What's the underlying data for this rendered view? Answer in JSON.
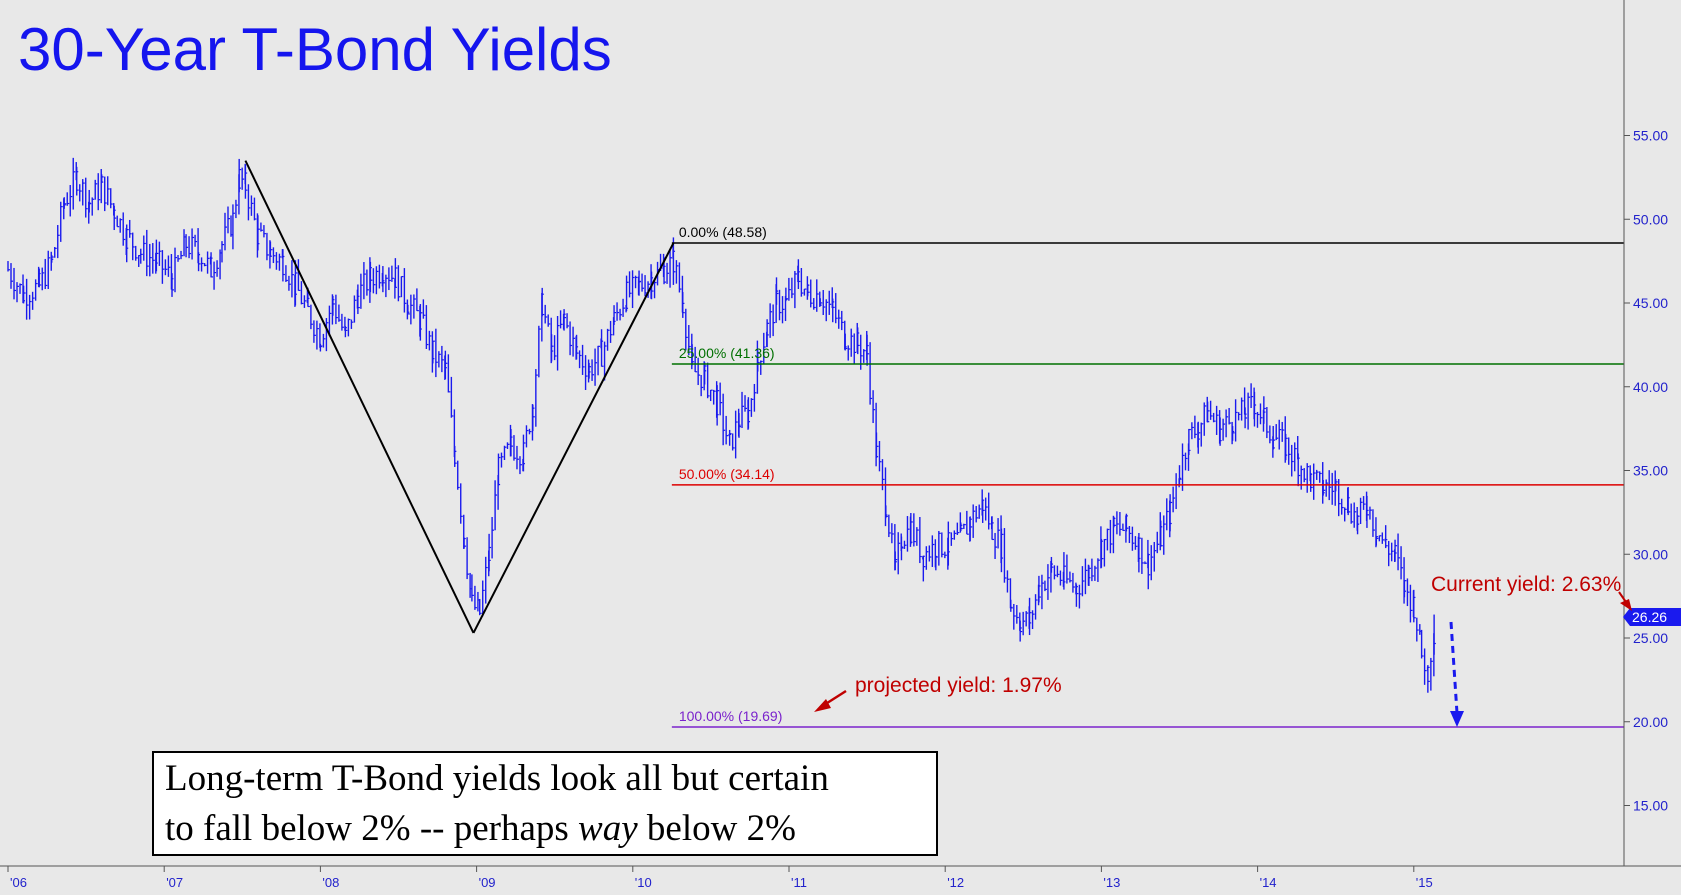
{
  "chart_data": {
    "type": "line",
    "title": "30-Year T-Bond Yields",
    "x_ticks": [
      "'06",
      "'07",
      "'08",
      "'09",
      "'10",
      "'11",
      "'12",
      "'13",
      "'14",
      "'15"
    ],
    "x_range": [
      2006.0,
      2016.4
    ],
    "y_ticks": [
      "55.00",
      "50.00",
      "45.00",
      "40.00",
      "35.00",
      "30.00",
      "25.00",
      "20.00",
      "15.00"
    ],
    "y_range": [
      10.5,
      60.3
    ],
    "axis_side": "right",
    "grid": false,
    "series": [
      {
        "color": "#1a1aee",
        "style": "weekly high-low bars",
        "points": [
          [
            2006.0,
            47.0
          ],
          [
            2006.1,
            45.5
          ],
          [
            2006.2,
            46.0
          ],
          [
            2006.28,
            47.5
          ],
          [
            2006.36,
            51.0
          ],
          [
            2006.44,
            52.5
          ],
          [
            2006.52,
            51.0
          ],
          [
            2006.6,
            52.0
          ],
          [
            2006.68,
            50.5
          ],
          [
            2006.76,
            49.0
          ],
          [
            2006.85,
            48.0
          ],
          [
            2006.95,
            47.5
          ],
          [
            2007.05,
            46.5
          ],
          [
            2007.14,
            48.5
          ],
          [
            2007.22,
            48.0
          ],
          [
            2007.3,
            47.0
          ],
          [
            2007.37,
            48.5
          ],
          [
            2007.44,
            50.0
          ],
          [
            2007.48,
            52.5
          ],
          [
            2007.52,
            52.0
          ],
          [
            2007.6,
            49.0
          ],
          [
            2007.68,
            48.0
          ],
          [
            2007.76,
            47.5
          ],
          [
            2007.84,
            46.0
          ],
          [
            2007.92,
            44.5
          ],
          [
            2008.0,
            43.0
          ],
          [
            2008.08,
            45.0
          ],
          [
            2008.16,
            43.0
          ],
          [
            2008.24,
            45.5
          ],
          [
            2008.32,
            46.5
          ],
          [
            2008.4,
            47.0
          ],
          [
            2008.48,
            46.5
          ],
          [
            2008.56,
            45.0
          ],
          [
            2008.64,
            44.0
          ],
          [
            2008.72,
            42.0
          ],
          [
            2008.8,
            41.0
          ],
          [
            2008.86,
            36.0
          ],
          [
            2008.92,
            31.0
          ],
          [
            2008.97,
            27.0
          ],
          [
            2009.02,
            26.5
          ],
          [
            2009.08,
            30.0
          ],
          [
            2009.14,
            35.0
          ],
          [
            2009.22,
            36.5
          ],
          [
            2009.3,
            36.0
          ],
          [
            2009.36,
            39.0
          ],
          [
            2009.42,
            45.0
          ],
          [
            2009.48,
            42.0
          ],
          [
            2009.56,
            44.0
          ],
          [
            2009.64,
            42.0
          ],
          [
            2009.72,
            41.0
          ],
          [
            2009.8,
            42.0
          ],
          [
            2009.88,
            44.0
          ],
          [
            2009.96,
            45.5
          ],
          [
            2010.04,
            46.0
          ],
          [
            2010.12,
            46.5
          ],
          [
            2010.2,
            47.0
          ],
          [
            2010.26,
            47.5
          ],
          [
            2010.32,
            45.0
          ],
          [
            2010.38,
            41.0
          ],
          [
            2010.46,
            40.5
          ],
          [
            2010.54,
            39.0
          ],
          [
            2010.62,
            36.5
          ],
          [
            2010.68,
            38.0
          ],
          [
            2010.74,
            38.5
          ],
          [
            2010.8,
            41.5
          ],
          [
            2010.86,
            43.5
          ],
          [
            2010.92,
            45.0
          ],
          [
            2010.98,
            45.0
          ],
          [
            2011.06,
            46.5
          ],
          [
            2011.12,
            45.5
          ],
          [
            2011.2,
            45.5
          ],
          [
            2011.28,
            44.5
          ],
          [
            2011.36,
            43.0
          ],
          [
            2011.44,
            42.5
          ],
          [
            2011.5,
            42.0
          ],
          [
            2011.56,
            36.0
          ],
          [
            2011.62,
            33.0
          ],
          [
            2011.68,
            29.0
          ],
          [
            2011.72,
            31.0
          ],
          [
            2011.78,
            31.5
          ],
          [
            2011.86,
            30.0
          ],
          [
            2011.94,
            30.5
          ],
          [
            2012.02,
            30.5
          ],
          [
            2012.1,
            31.0
          ],
          [
            2012.16,
            32.0
          ],
          [
            2012.24,
            33.0
          ],
          [
            2012.3,
            31.5
          ],
          [
            2012.36,
            30.5
          ],
          [
            2012.42,
            27.0
          ],
          [
            2012.48,
            26.0
          ],
          [
            2012.54,
            26.0
          ],
          [
            2012.6,
            28.0
          ],
          [
            2012.68,
            29.0
          ],
          [
            2012.76,
            28.5
          ],
          [
            2012.84,
            28.0
          ],
          [
            2012.92,
            29.0
          ],
          [
            2013.0,
            30.5
          ],
          [
            2013.08,
            31.5
          ],
          [
            2013.16,
            31.5
          ],
          [
            2013.24,
            30.5
          ],
          [
            2013.3,
            29.5
          ],
          [
            2013.38,
            31.0
          ],
          [
            2013.44,
            32.5
          ],
          [
            2013.5,
            35.0
          ],
          [
            2013.56,
            37.0
          ],
          [
            2013.62,
            37.5
          ],
          [
            2013.68,
            38.5
          ],
          [
            2013.76,
            37.5
          ],
          [
            2013.84,
            38.0
          ],
          [
            2013.92,
            38.5
          ],
          [
            2013.98,
            39.0
          ],
          [
            2014.04,
            38.0
          ],
          [
            2014.1,
            37.0
          ],
          [
            2014.18,
            36.5
          ],
          [
            2014.26,
            35.5
          ],
          [
            2014.34,
            34.5
          ],
          [
            2014.42,
            34.0
          ],
          [
            2014.5,
            34.0
          ],
          [
            2014.58,
            33.0
          ],
          [
            2014.64,
            32.0
          ],
          [
            2014.7,
            33.0
          ],
          [
            2014.76,
            31.5
          ],
          [
            2014.82,
            30.5
          ],
          [
            2014.88,
            30.0
          ],
          [
            2014.94,
            28.0
          ],
          [
            2015.0,
            27.0
          ],
          [
            2015.05,
            24.0
          ],
          [
            2015.09,
            23.0
          ],
          [
            2015.13,
            25.5
          ]
        ]
      }
    ],
    "current_value": "26.26",
    "fib_levels": [
      {
        "pct": "0.00%",
        "value": 48.58,
        "label": "0.00% (48.58)",
        "color": "#000000"
      },
      {
        "pct": "25.00%",
        "value": 41.36,
        "label": "25.00% (41.36)",
        "color": "#007000"
      },
      {
        "pct": "50.00%",
        "value": 34.14,
        "label": "50.00% (34.14)",
        "color": "#dd0000"
      },
      {
        "pct": "100.00%",
        "value": 19.69,
        "label": "100.00% (19.69)",
        "color": "#7a22cc"
      }
    ],
    "fib_start_x": 2010.25,
    "pattern_lines": [
      {
        "from": [
          2007.52,
          53.5
        ],
        "to": [
          2008.98,
          25.3
        ]
      },
      {
        "from": [
          2008.98,
          25.3
        ],
        "to": [
          2010.26,
          48.58
        ]
      }
    ],
    "annotations": {
      "current_yield": "Current yield: 2.63%",
      "projected_yield": "projected yield: 1.97%",
      "note_line1": "Long-term T-Bond yields look all but certain",
      "note_line2_a": "to fall below 2% -- perhaps ",
      "note_line2_em": "way",
      "note_line2_b": " below 2%"
    }
  }
}
